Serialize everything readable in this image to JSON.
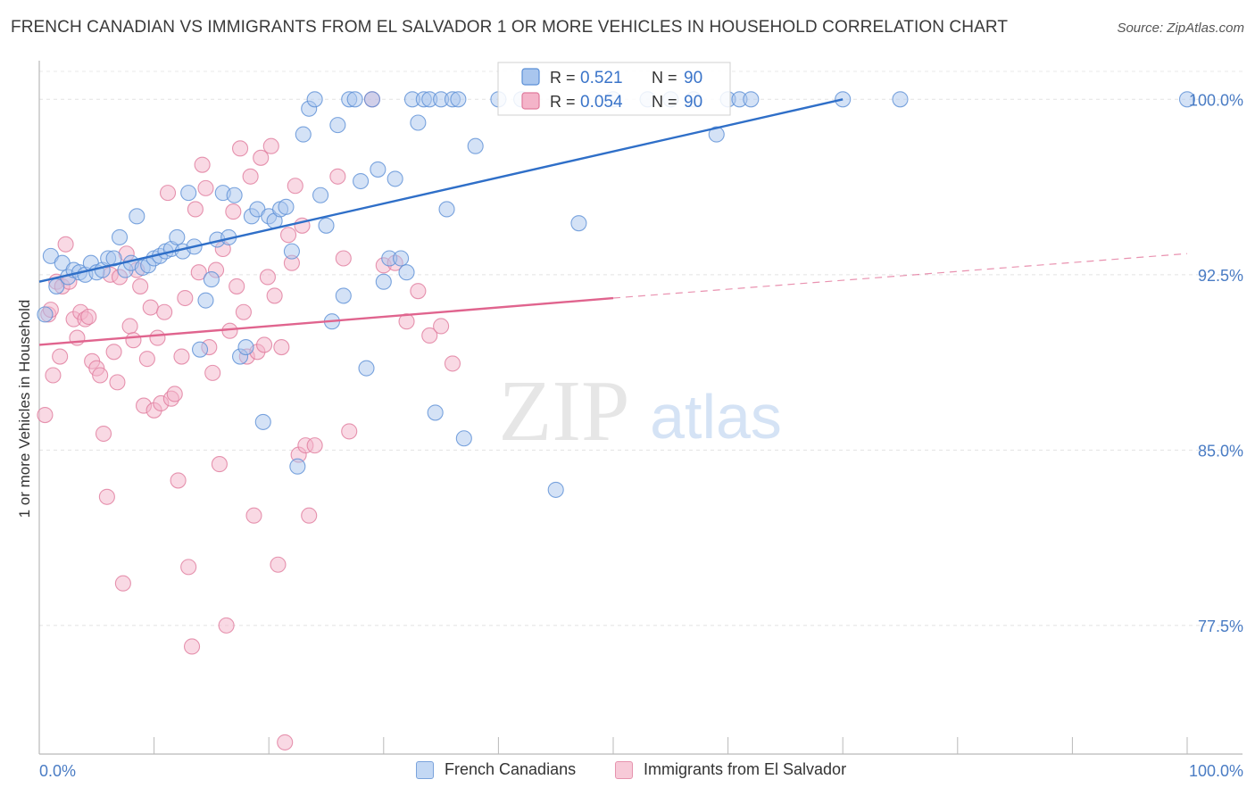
{
  "header": {
    "title": "FRENCH CANADIAN VS IMMIGRANTS FROM EL SALVADOR 1 OR MORE VEHICLES IN HOUSEHOLD CORRELATION CHART",
    "source": "Source: ZipAtlas.com"
  },
  "watermark": {
    "zip": "ZIP",
    "atlas": "atlas"
  },
  "stats_legend": [
    {
      "r_label": "R =",
      "r_value": "0.521",
      "n_label": "N =",
      "n_value": "90"
    },
    {
      "r_label": "R =",
      "r_value": "0.054",
      "n_label": "N =",
      "n_value": "90"
    }
  ],
  "chart_data": {
    "type": "scatter",
    "title": "FRENCH CANADIAN VS IMMIGRANTS FROM EL SALVADOR 1 OR MORE VEHICLES IN HOUSEHOLD CORRELATION CHART",
    "xlabel": "",
    "ylabel": "1 or more Vehicles in Household",
    "xlim": [
      0,
      100
    ],
    "ylim": [
      72,
      101.5
    ],
    "x_tick_labels": [
      "0.0%",
      "100.0%"
    ],
    "y_ticks": [
      77.5,
      85.0,
      92.5,
      100.0
    ],
    "y_tick_labels": [
      "77.5%",
      "85.0%",
      "92.5%",
      "100.0%"
    ],
    "grid": true,
    "legend_placement": "bottom-center",
    "colors": {
      "french_fill": "#a9c6ee",
      "french_stroke": "#5b8fd6",
      "french_line": "#2f6fc8",
      "salvador_fill": "#f4b4c9",
      "salvador_stroke": "#e07a9c",
      "salvador_line": "#e0648e",
      "tick_label": "#4a7cc4"
    },
    "series": [
      {
        "name": "French Canadians",
        "color": "#a9c6ee",
        "trend": {
          "x": [
            0,
            70
          ],
          "y": [
            92.2,
            100.0
          ],
          "dashed_to": null
        },
        "points": [
          [
            0.5,
            90.8
          ],
          [
            1,
            93.3
          ],
          [
            1.5,
            92.0
          ],
          [
            2,
            93.0
          ],
          [
            2.5,
            92.4
          ],
          [
            3,
            92.7
          ],
          [
            3.5,
            92.6
          ],
          [
            4,
            92.5
          ],
          [
            4.5,
            93.0
          ],
          [
            5,
            92.6
          ],
          [
            5.5,
            92.7
          ],
          [
            6,
            93.2
          ],
          [
            6.5,
            93.2
          ],
          [
            7,
            94.1
          ],
          [
            7.5,
            92.7
          ],
          [
            8,
            93.0
          ],
          [
            8.5,
            95.0
          ],
          [
            9,
            92.8
          ],
          [
            9.5,
            92.9
          ],
          [
            10,
            93.2
          ],
          [
            10.5,
            93.3
          ],
          [
            11,
            93.5
          ],
          [
            11.5,
            93.6
          ],
          [
            12,
            94.1
          ],
          [
            12.5,
            93.5
          ],
          [
            13,
            96.0
          ],
          [
            13.5,
            93.7
          ],
          [
            14,
            89.3
          ],
          [
            14.5,
            91.4
          ],
          [
            15,
            92.3
          ],
          [
            15.5,
            94.0
          ],
          [
            16,
            96.0
          ],
          [
            16.5,
            94.1
          ],
          [
            17,
            95.9
          ],
          [
            17.5,
            89.0
          ],
          [
            18,
            89.4
          ],
          [
            18.5,
            95.0
          ],
          [
            19,
            95.3
          ],
          [
            19.5,
            86.2
          ],
          [
            20,
            95.0
          ],
          [
            20.5,
            94.8
          ],
          [
            21,
            95.3
          ],
          [
            21.5,
            95.4
          ],
          [
            22,
            93.5
          ],
          [
            22.5,
            84.3
          ],
          [
            23,
            98.5
          ],
          [
            23.5,
            99.6
          ],
          [
            24,
            100.0
          ],
          [
            24.5,
            95.9
          ],
          [
            25,
            94.6
          ],
          [
            25.5,
            90.5
          ],
          [
            26,
            98.9
          ],
          [
            26.5,
            91.6
          ],
          [
            27,
            100.0
          ],
          [
            27.5,
            100.0
          ],
          [
            28,
            96.5
          ],
          [
            28.5,
            88.5
          ],
          [
            29,
            100.0
          ],
          [
            29.5,
            97.0
          ],
          [
            30,
            92.2
          ],
          [
            30.5,
            93.2
          ],
          [
            31,
            96.6
          ],
          [
            31.5,
            93.2
          ],
          [
            32,
            92.6
          ],
          [
            32.5,
            100.0
          ],
          [
            33,
            99.0
          ],
          [
            33.5,
            100.0
          ],
          [
            34,
            100.0
          ],
          [
            34.5,
            86.6
          ],
          [
            35,
            100.0
          ],
          [
            35.5,
            95.3
          ],
          [
            36,
            100.0
          ],
          [
            36.5,
            100.0
          ],
          [
            37,
            85.5
          ],
          [
            38,
            98.0
          ],
          [
            40,
            100.0
          ],
          [
            45,
            83.3
          ],
          [
            47,
            94.7
          ],
          [
            50,
            100.0
          ],
          [
            55,
            100.0
          ],
          [
            57,
            100.0
          ],
          [
            59,
            98.5
          ],
          [
            60,
            100.0
          ],
          [
            61,
            100.0
          ],
          [
            62,
            100.0
          ],
          [
            70,
            100.0
          ],
          [
            75,
            100.0
          ],
          [
            100,
            100.0
          ],
          [
            53,
            100.0
          ],
          [
            42,
            100.0
          ]
        ]
      },
      {
        "name": "Immigrants from El Salvador",
        "color": "#f4b4c9",
        "trend": {
          "x": [
            0,
            50
          ],
          "y": [
            89.5,
            91.5
          ],
          "dashed_to": [
            100,
            93.4
          ]
        },
        "points": [
          [
            0.5,
            86.5
          ],
          [
            0.8,
            90.8
          ],
          [
            1,
            91.0
          ],
          [
            1.2,
            88.2
          ],
          [
            1.5,
            92.2
          ],
          [
            1.8,
            89.0
          ],
          [
            2,
            92.0
          ],
          [
            2.3,
            93.8
          ],
          [
            2.6,
            92.2
          ],
          [
            3,
            90.6
          ],
          [
            3.3,
            89.8
          ],
          [
            3.6,
            90.9
          ],
          [
            4,
            90.6
          ],
          [
            4.3,
            90.7
          ],
          [
            4.6,
            88.8
          ],
          [
            5,
            88.5
          ],
          [
            5.3,
            88.2
          ],
          [
            5.6,
            85.7
          ],
          [
            5.9,
            83.0
          ],
          [
            6.2,
            92.5
          ],
          [
            6.5,
            89.2
          ],
          [
            6.8,
            87.9
          ],
          [
            7,
            92.4
          ],
          [
            7.3,
            79.3
          ],
          [
            7.6,
            93.4
          ],
          [
            7.9,
            90.3
          ],
          [
            8.2,
            89.7
          ],
          [
            8.5,
            92.7
          ],
          [
            8.8,
            92.0
          ],
          [
            9.1,
            86.9
          ],
          [
            9.4,
            88.9
          ],
          [
            9.7,
            91.1
          ],
          [
            10,
            86.7
          ],
          [
            10.3,
            89.8
          ],
          [
            10.6,
            87.0
          ],
          [
            10.9,
            90.9
          ],
          [
            11.2,
            96.0
          ],
          [
            11.5,
            87.2
          ],
          [
            11.8,
            87.4
          ],
          [
            12.1,
            83.7
          ],
          [
            12.4,
            89.0
          ],
          [
            12.7,
            91.5
          ],
          [
            13,
            80.0
          ],
          [
            13.3,
            76.6
          ],
          [
            13.6,
            95.3
          ],
          [
            13.9,
            92.6
          ],
          [
            14.2,
            97.2
          ],
          [
            14.5,
            96.2
          ],
          [
            14.8,
            89.4
          ],
          [
            15.1,
            88.3
          ],
          [
            15.4,
            92.7
          ],
          [
            15.7,
            84.4
          ],
          [
            16,
            93.6
          ],
          [
            16.3,
            77.5
          ],
          [
            16.6,
            90.1
          ],
          [
            16.9,
            95.2
          ],
          [
            17.2,
            92.0
          ],
          [
            17.5,
            97.9
          ],
          [
            17.8,
            90.9
          ],
          [
            18.1,
            89.0
          ],
          [
            18.4,
            96.7
          ],
          [
            18.7,
            82.2
          ],
          [
            19,
            89.2
          ],
          [
            19.3,
            97.5
          ],
          [
            19.6,
            89.5
          ],
          [
            19.9,
            92.4
          ],
          [
            20.2,
            98.0
          ],
          [
            20.5,
            91.6
          ],
          [
            20.8,
            80.1
          ],
          [
            21.1,
            89.4
          ],
          [
            21.4,
            72.5
          ],
          [
            21.7,
            94.2
          ],
          [
            22,
            93.0
          ],
          [
            22.3,
            96.3
          ],
          [
            22.6,
            84.8
          ],
          [
            22.9,
            94.6
          ],
          [
            23.2,
            85.2
          ],
          [
            23.5,
            82.2
          ],
          [
            24,
            85.2
          ],
          [
            26,
            96.7
          ],
          [
            26.5,
            93.2
          ],
          [
            27,
            85.8
          ],
          [
            29,
            100.0
          ],
          [
            30,
            92.9
          ],
          [
            31,
            93.0
          ],
          [
            32,
            90.5
          ],
          [
            33,
            91.8
          ],
          [
            34,
            89.9
          ],
          [
            35,
            90.3
          ],
          [
            36,
            88.7
          ]
        ]
      }
    ]
  }
}
